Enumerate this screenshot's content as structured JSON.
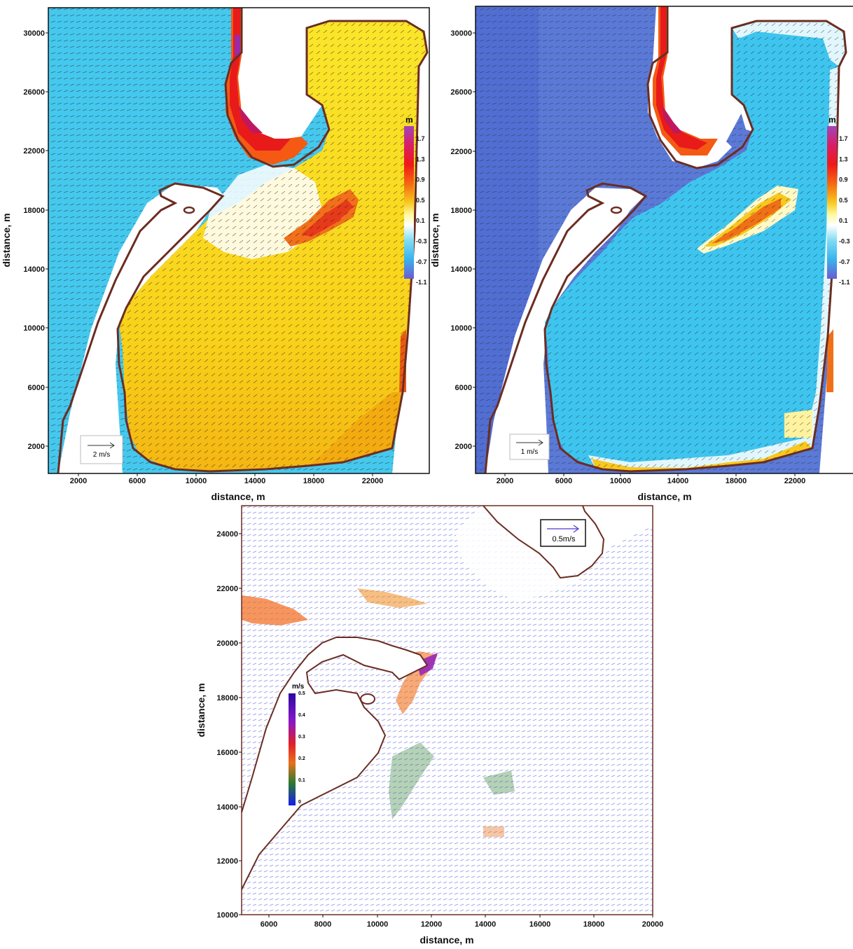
{
  "panels": [
    {
      "xlabel": "distance, m",
      "ylabel": "distance, m",
      "x_ticks": [
        "2000",
        "6000",
        "10000",
        "14000",
        "18000",
        "22000"
      ],
      "y_ticks": [
        "2000",
        "6000",
        "10000",
        "14000",
        "18000",
        "22000",
        "26000",
        "30000"
      ],
      "colorbar_unit": "m",
      "colorbar_ticks": [
        "1.7",
        "1.3",
        "0.9",
        "0.5",
        "0.1",
        "-0.3",
        "-0.7",
        "-1.1"
      ],
      "scale_label": "2 m/s"
    },
    {
      "xlabel": "distance, m",
      "ylabel": "distance, m",
      "x_ticks": [
        "2000",
        "6000",
        "10000",
        "14000",
        "18000",
        "22000"
      ],
      "y_ticks": [
        "2000",
        "6000",
        "10000",
        "14000",
        "18000",
        "22000",
        "26000",
        "30000"
      ],
      "colorbar_unit": "m",
      "colorbar_ticks": [
        "1.7",
        "1.3",
        "0.9",
        "0.5",
        "0.1",
        "-0.3",
        "-0.7",
        "-1.1"
      ],
      "scale_label": "1 m/s"
    },
    {
      "xlabel": "distance, m",
      "ylabel": "distance, m",
      "x_ticks": [
        "6000",
        "8000",
        "10000",
        "12000",
        "14000",
        "16000",
        "18000",
        "20000"
      ],
      "y_ticks": [
        "10000",
        "12000",
        "14000",
        "16000",
        "18000",
        "20000",
        "22000",
        "24000"
      ],
      "colorbar_unit": "m/s",
      "colorbar_ticks": [
        "0.5",
        "0.4",
        "0.3",
        "0.2",
        "0.1",
        "0"
      ],
      "scale_label": "0.5m/s"
    }
  ],
  "colors": {
    "coast": "#6b2d22",
    "sea_p1": "#45c8ee",
    "sea_p2": "#5b79d6",
    "bay_p1": "#f9dc19",
    "bay_p2": "#3ec5ef"
  }
}
